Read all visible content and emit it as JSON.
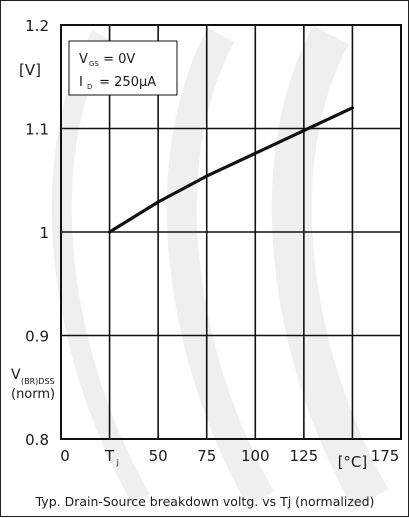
{
  "chart_data": {
    "type": "line",
    "title": "Typ. Drain-Source breakdown voltg. vs Tj (normalized)",
    "xlim": [
      0,
      175
    ],
    "ylim": [
      0.8,
      1.2
    ],
    "x_ticks": [
      0,
      25,
      50,
      75,
      100,
      125,
      150,
      175
    ],
    "y_ticks": [
      0.8,
      0.9,
      1.0,
      1.1,
      1.2
    ],
    "x_tick_labels": [
      "0",
      "T",
      "50",
      "75",
      "100",
      "125",
      "[°C]",
      "175"
    ],
    "x_tick_subscripts": {
      "T": "j"
    },
    "y_tick_labels": [
      "0.8",
      "0.9",
      "1",
      "1.1",
      "1.2"
    ],
    "y_unit": "[V]",
    "ylabel": {
      "main": "V",
      "subscript": "(BR)DSS",
      "line2": "(norm)"
    },
    "conditions": [
      {
        "main": "V",
        "sub": "GS",
        "rest": " = 0V"
      },
      {
        "main": "I",
        "sub": "D",
        "rest": " = 250µA"
      }
    ],
    "grid": true,
    "line_color": "#111111",
    "series": [
      {
        "x": [
          25,
          50,
          75,
          100,
          125,
          150
        ],
        "y": [
          1.0,
          1.029,
          1.054,
          1.076,
          1.098,
          1.12
        ]
      }
    ]
  }
}
